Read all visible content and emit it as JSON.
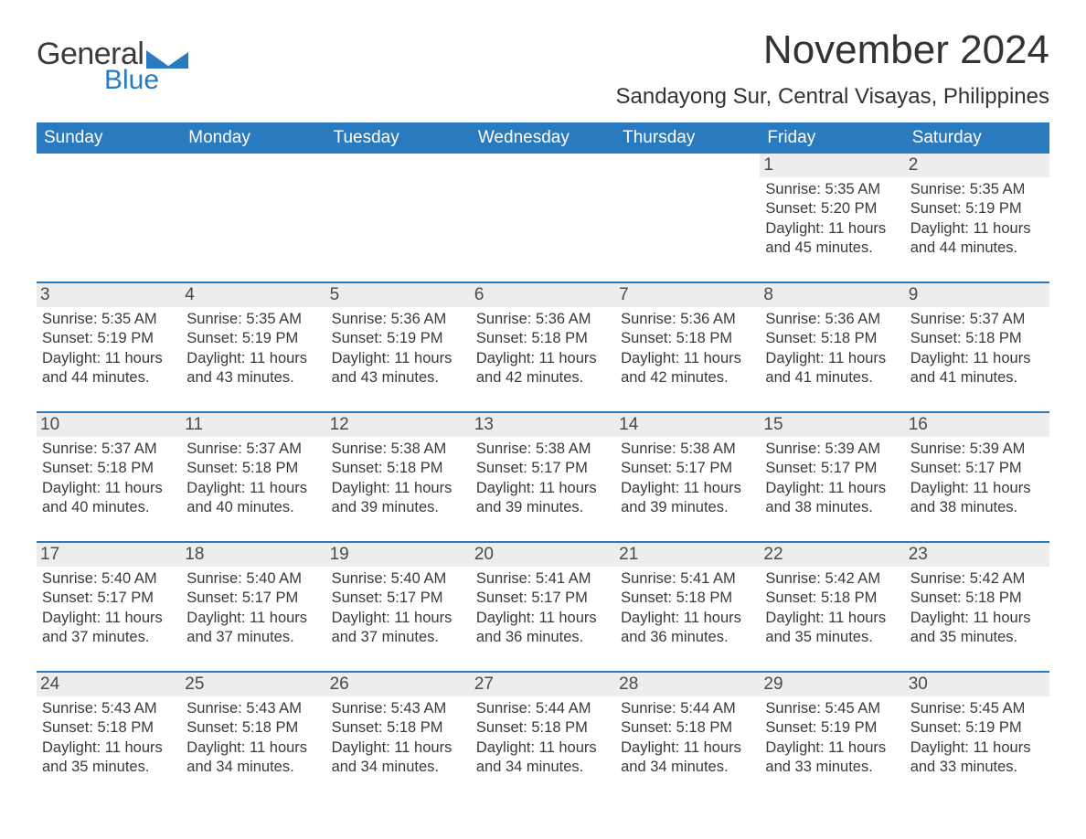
{
  "logo": {
    "general": "General",
    "blue": "Blue",
    "tri_color": "#2a7ac0"
  },
  "title": {
    "month": "November 2024",
    "location": "Sandayong Sur, Central Visayas, Philippines"
  },
  "colors": {
    "header_bg": "#2a7ac0",
    "header_fg": "#ffffff",
    "daynum_bg": "#ededed",
    "week_border": "#2a7ac0",
    "text": "#333333"
  },
  "typography": {
    "title_size": 44,
    "location_size": 24,
    "dow_size": 19,
    "body_size": 16.5
  },
  "days_of_week": [
    "Sunday",
    "Monday",
    "Tuesday",
    "Wednesday",
    "Thursday",
    "Friday",
    "Saturday"
  ],
  "weeks": [
    [
      null,
      null,
      null,
      null,
      null,
      {
        "n": "1",
        "sunrise": "Sunrise: 5:35 AM",
        "sunset": "Sunset: 5:20 PM",
        "daylight": "Daylight: 11 hours and 45 minutes."
      },
      {
        "n": "2",
        "sunrise": "Sunrise: 5:35 AM",
        "sunset": "Sunset: 5:19 PM",
        "daylight": "Daylight: 11 hours and 44 minutes."
      }
    ],
    [
      {
        "n": "3",
        "sunrise": "Sunrise: 5:35 AM",
        "sunset": "Sunset: 5:19 PM",
        "daylight": "Daylight: 11 hours and 44 minutes."
      },
      {
        "n": "4",
        "sunrise": "Sunrise: 5:35 AM",
        "sunset": "Sunset: 5:19 PM",
        "daylight": "Daylight: 11 hours and 43 minutes."
      },
      {
        "n": "5",
        "sunrise": "Sunrise: 5:36 AM",
        "sunset": "Sunset: 5:19 PM",
        "daylight": "Daylight: 11 hours and 43 minutes."
      },
      {
        "n": "6",
        "sunrise": "Sunrise: 5:36 AM",
        "sunset": "Sunset: 5:18 PM",
        "daylight": "Daylight: 11 hours and 42 minutes."
      },
      {
        "n": "7",
        "sunrise": "Sunrise: 5:36 AM",
        "sunset": "Sunset: 5:18 PM",
        "daylight": "Daylight: 11 hours and 42 minutes."
      },
      {
        "n": "8",
        "sunrise": "Sunrise: 5:36 AM",
        "sunset": "Sunset: 5:18 PM",
        "daylight": "Daylight: 11 hours and 41 minutes."
      },
      {
        "n": "9",
        "sunrise": "Sunrise: 5:37 AM",
        "sunset": "Sunset: 5:18 PM",
        "daylight": "Daylight: 11 hours and 41 minutes."
      }
    ],
    [
      {
        "n": "10",
        "sunrise": "Sunrise: 5:37 AM",
        "sunset": "Sunset: 5:18 PM",
        "daylight": "Daylight: 11 hours and 40 minutes."
      },
      {
        "n": "11",
        "sunrise": "Sunrise: 5:37 AM",
        "sunset": "Sunset: 5:18 PM",
        "daylight": "Daylight: 11 hours and 40 minutes."
      },
      {
        "n": "12",
        "sunrise": "Sunrise: 5:38 AM",
        "sunset": "Sunset: 5:18 PM",
        "daylight": "Daylight: 11 hours and 39 minutes."
      },
      {
        "n": "13",
        "sunrise": "Sunrise: 5:38 AM",
        "sunset": "Sunset: 5:17 PM",
        "daylight": "Daylight: 11 hours and 39 minutes."
      },
      {
        "n": "14",
        "sunrise": "Sunrise: 5:38 AM",
        "sunset": "Sunset: 5:17 PM",
        "daylight": "Daylight: 11 hours and 39 minutes."
      },
      {
        "n": "15",
        "sunrise": "Sunrise: 5:39 AM",
        "sunset": "Sunset: 5:17 PM",
        "daylight": "Daylight: 11 hours and 38 minutes."
      },
      {
        "n": "16",
        "sunrise": "Sunrise: 5:39 AM",
        "sunset": "Sunset: 5:17 PM",
        "daylight": "Daylight: 11 hours and 38 minutes."
      }
    ],
    [
      {
        "n": "17",
        "sunrise": "Sunrise: 5:40 AM",
        "sunset": "Sunset: 5:17 PM",
        "daylight": "Daylight: 11 hours and 37 minutes."
      },
      {
        "n": "18",
        "sunrise": "Sunrise: 5:40 AM",
        "sunset": "Sunset: 5:17 PM",
        "daylight": "Daylight: 11 hours and 37 minutes."
      },
      {
        "n": "19",
        "sunrise": "Sunrise: 5:40 AM",
        "sunset": "Sunset: 5:17 PM",
        "daylight": "Daylight: 11 hours and 37 minutes."
      },
      {
        "n": "20",
        "sunrise": "Sunrise: 5:41 AM",
        "sunset": "Sunset: 5:17 PM",
        "daylight": "Daylight: 11 hours and 36 minutes."
      },
      {
        "n": "21",
        "sunrise": "Sunrise: 5:41 AM",
        "sunset": "Sunset: 5:18 PM",
        "daylight": "Daylight: 11 hours and 36 minutes."
      },
      {
        "n": "22",
        "sunrise": "Sunrise: 5:42 AM",
        "sunset": "Sunset: 5:18 PM",
        "daylight": "Daylight: 11 hours and 35 minutes."
      },
      {
        "n": "23",
        "sunrise": "Sunrise: 5:42 AM",
        "sunset": "Sunset: 5:18 PM",
        "daylight": "Daylight: 11 hours and 35 minutes."
      }
    ],
    [
      {
        "n": "24",
        "sunrise": "Sunrise: 5:43 AM",
        "sunset": "Sunset: 5:18 PM",
        "daylight": "Daylight: 11 hours and 35 minutes."
      },
      {
        "n": "25",
        "sunrise": "Sunrise: 5:43 AM",
        "sunset": "Sunset: 5:18 PM",
        "daylight": "Daylight: 11 hours and 34 minutes."
      },
      {
        "n": "26",
        "sunrise": "Sunrise: 5:43 AM",
        "sunset": "Sunset: 5:18 PM",
        "daylight": "Daylight: 11 hours and 34 minutes."
      },
      {
        "n": "27",
        "sunrise": "Sunrise: 5:44 AM",
        "sunset": "Sunset: 5:18 PM",
        "daylight": "Daylight: 11 hours and 34 minutes."
      },
      {
        "n": "28",
        "sunrise": "Sunrise: 5:44 AM",
        "sunset": "Sunset: 5:18 PM",
        "daylight": "Daylight: 11 hours and 34 minutes."
      },
      {
        "n": "29",
        "sunrise": "Sunrise: 5:45 AM",
        "sunset": "Sunset: 5:19 PM",
        "daylight": "Daylight: 11 hours and 33 minutes."
      },
      {
        "n": "30",
        "sunrise": "Sunrise: 5:45 AM",
        "sunset": "Sunset: 5:19 PM",
        "daylight": "Daylight: 11 hours and 33 minutes."
      }
    ]
  ]
}
